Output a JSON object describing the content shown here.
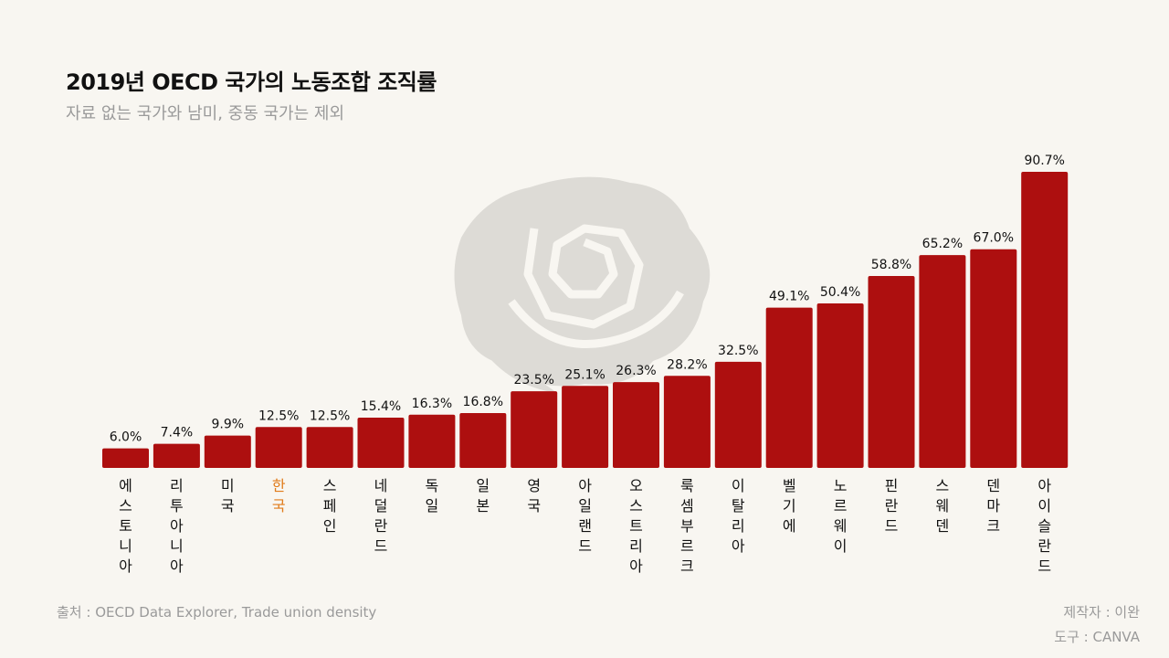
{
  "title": "2019년 OECD 국가의 노동조합 조직률",
  "subtitle": "자료 없는 국가와 남미, 중동 국가는 제외",
  "source": "출처 : OECD Data Explorer, Trade union density",
  "credits": {
    "author": "제작자 : 이완",
    "tool": "도구 : CANVA"
  },
  "colors": {
    "bar": "#ad0f0f",
    "highlight_label": "#e07b1a",
    "label": "#111111",
    "watermark": "#dddbd6"
  },
  "watermark_icon": "rose-icon",
  "chart_data": {
    "type": "bar",
    "title": "2019년 OECD 국가의 노동조합 조직률",
    "xlabel": "",
    "ylabel": "",
    "ylim": [
      0,
      90.7
    ],
    "grid": false,
    "categories": [
      "에스토니아",
      "리투아니아",
      "미국",
      "한국",
      "스페인",
      "네덜란드",
      "독일",
      "일본",
      "영국",
      "아일랜드",
      "오스트리아",
      "룩셈부르크",
      "이탈리아",
      "벨기에",
      "노르웨이",
      "핀란드",
      "스웨덴",
      "덴마크",
      "아이슬란드"
    ],
    "values": [
      6.0,
      7.4,
      9.9,
      12.5,
      12.5,
      15.4,
      16.3,
      16.8,
      23.5,
      25.1,
      26.3,
      28.2,
      32.5,
      49.1,
      50.4,
      58.8,
      65.2,
      67.0,
      90.7
    ],
    "value_labels": [
      "6.0%",
      "7.4%",
      "9.9%",
      "12.5%",
      "12.5%",
      "15.4%",
      "16.3%",
      "16.8%",
      "23.5%",
      "25.1%",
      "26.3%",
      "28.2%",
      "32.5%",
      "49.1%",
      "50.4%",
      "58.8%",
      "65.2%",
      "67.0%",
      "90.7%"
    ],
    "highlight": "한국"
  }
}
